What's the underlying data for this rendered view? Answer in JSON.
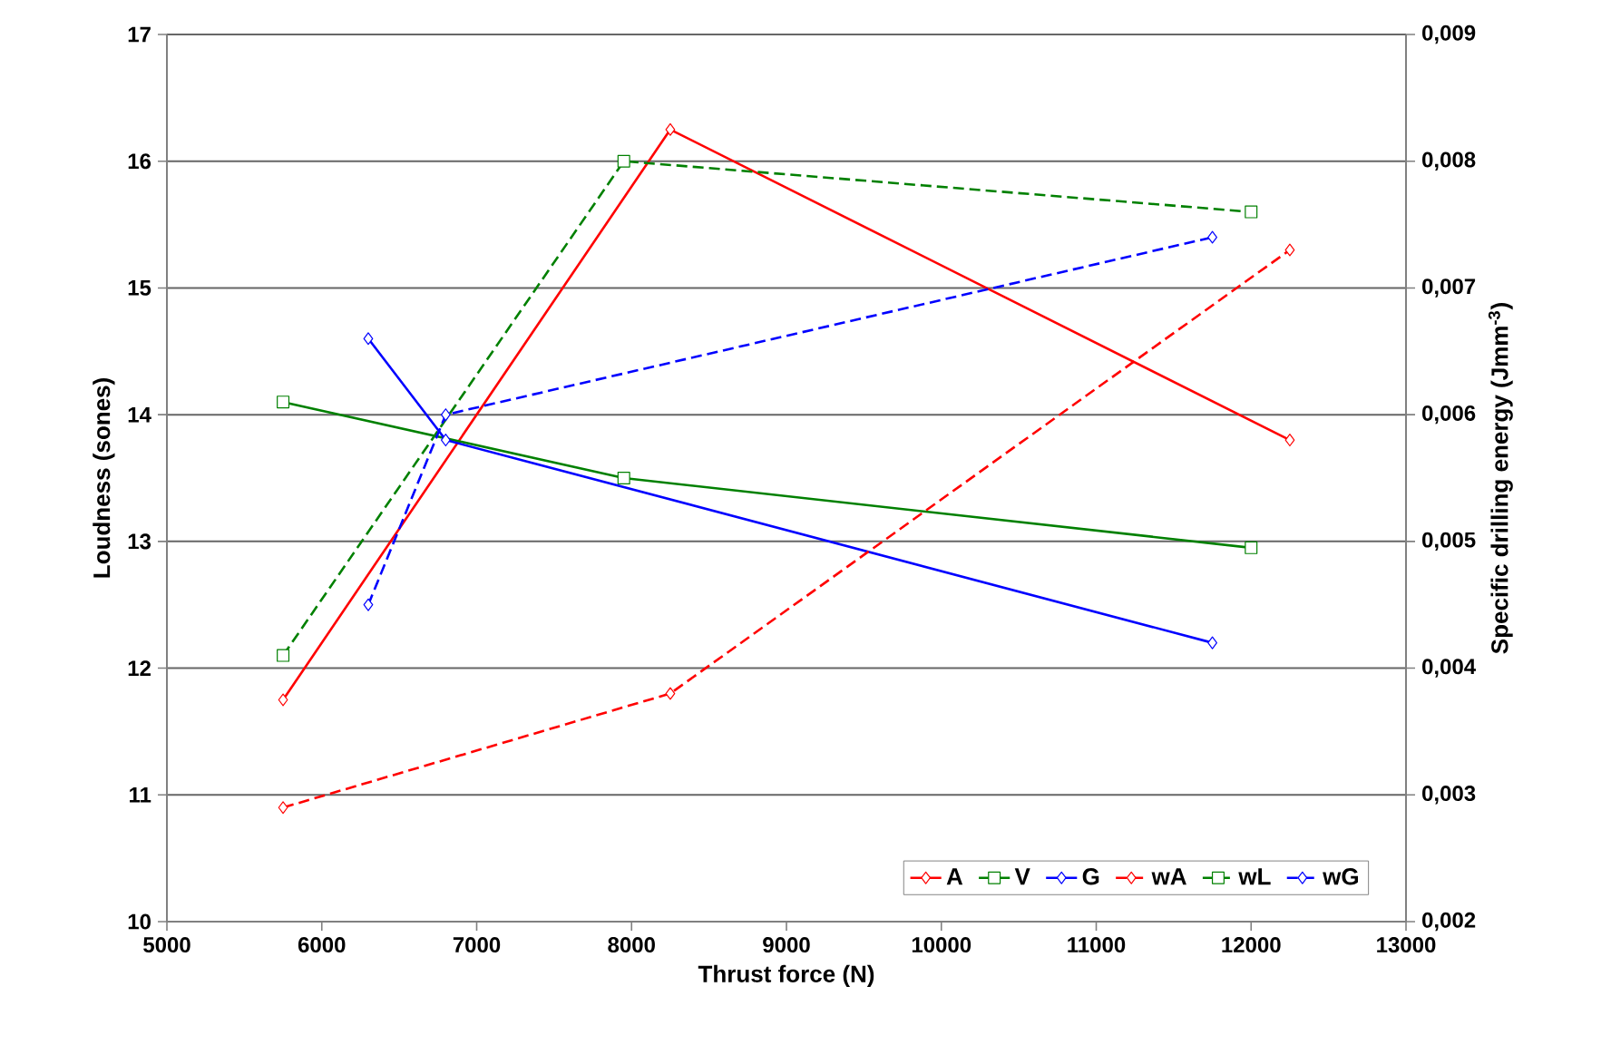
{
  "chart_data": {
    "type": "line",
    "xlabel": "Thrust force (N)",
    "ylabel": "Loudness (sones)",
    "y2label": "Specific drilling energy  (Jmm$^{-3}$)",
    "xlim": [
      5000,
      13000
    ],
    "xticks": [
      5000,
      6000,
      7000,
      8000,
      9000,
      10000,
      11000,
      12000,
      13000
    ],
    "ylim": [
      10,
      17
    ],
    "yticks": [
      10,
      11,
      12,
      13,
      14,
      15,
      16,
      17
    ],
    "y2lim": [
      0.002,
      0.009
    ],
    "y2ticks": [
      {
        "value": 0.002,
        "label": "0,002"
      },
      {
        "value": 0.003,
        "label": "0,003"
      },
      {
        "value": 0.004,
        "label": "0,004"
      },
      {
        "value": 0.005,
        "label": "0,005"
      },
      {
        "value": 0.006,
        "label": "0,006"
      },
      {
        "value": 0.007,
        "label": "0,007"
      },
      {
        "value": 0.008,
        "label": "0,008"
      },
      {
        "value": 0.009,
        "label": "0,009"
      }
    ],
    "grid": "y",
    "legend": "bottom right",
    "series": [
      {
        "name": "A",
        "color": "#ff0000",
        "marker": "diamond",
        "line_style": "solid",
        "x": [
          5750,
          8250,
          12250
        ],
        "values": [
          11.75,
          16.25,
          13.8
        ]
      },
      {
        "name": "V",
        "color": "#008000",
        "marker": "square",
        "line_style": "solid",
        "x": [
          5750,
          7950,
          12000
        ],
        "values": [
          14.1,
          13.5,
          12.95
        ]
      },
      {
        "name": "G",
        "color": "#0000ff",
        "marker": "diamond",
        "line_style": "solid",
        "x": [
          6300,
          6800,
          11750
        ],
        "values": [
          14.6,
          13.8,
          12.2
        ]
      },
      {
        "name": "wA",
        "color": "#ff0000",
        "marker": "diamond",
        "line_style": "dashed",
        "axis": "y2",
        "x": [
          5750,
          8250,
          12250
        ],
        "values": [
          0.0029,
          0.0038,
          0.0073
        ]
      },
      {
        "name": "wL",
        "color": "#008000",
        "marker": "square",
        "line_style": "dashed",
        "axis": "y2",
        "x": [
          5750,
          7950,
          12000
        ],
        "values": [
          0.0041,
          0.008,
          0.0076
        ]
      },
      {
        "name": "wG",
        "color": "#0000ff",
        "marker": "diamond",
        "line_style": "dashed",
        "axis": "y2",
        "x": [
          6300,
          6800,
          11750
        ],
        "values": [
          0.0045,
          0.006,
          0.0074
        ]
      }
    ]
  }
}
